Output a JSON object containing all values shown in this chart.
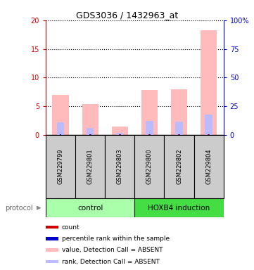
{
  "title": "GDS3036 / 1432963_at",
  "samples": [
    "GSM229799",
    "GSM229801",
    "GSM229803",
    "GSM229800",
    "GSM229802",
    "GSM229804"
  ],
  "pink_bars": [
    7.0,
    5.4,
    1.5,
    7.8,
    8.0,
    18.2
  ],
  "blue_bars": [
    2.2,
    1.2,
    0.4,
    2.5,
    2.3,
    3.6
  ],
  "ylim_left": [
    0,
    20
  ],
  "ylim_right": [
    0,
    100
  ],
  "yticks_left": [
    0,
    5,
    10,
    15,
    20
  ],
  "yticks_right": [
    0,
    25,
    50,
    75,
    100
  ],
  "ytick_labels_right": [
    "0",
    "25",
    "50",
    "75",
    "100%"
  ],
  "ytick_labels_left": [
    "0",
    "5",
    "10",
    "15",
    "20"
  ],
  "left_axis_color": "#cc0000",
  "right_axis_color": "#0000cc",
  "pink_color": "#ffbbbb",
  "blue_color": "#bbbbff",
  "red_color": "#cc0000",
  "dark_blue_color": "#0000cc",
  "control_color": "#aaffaa",
  "hoxb4_color": "#44dd44",
  "sample_box_color": "#cccccc",
  "legend_labels": [
    "count",
    "percentile rank within the sample",
    "value, Detection Call = ABSENT",
    "rank, Detection Call = ABSENT"
  ],
  "protocol_label": "protocol",
  "background_color": "#ffffff"
}
